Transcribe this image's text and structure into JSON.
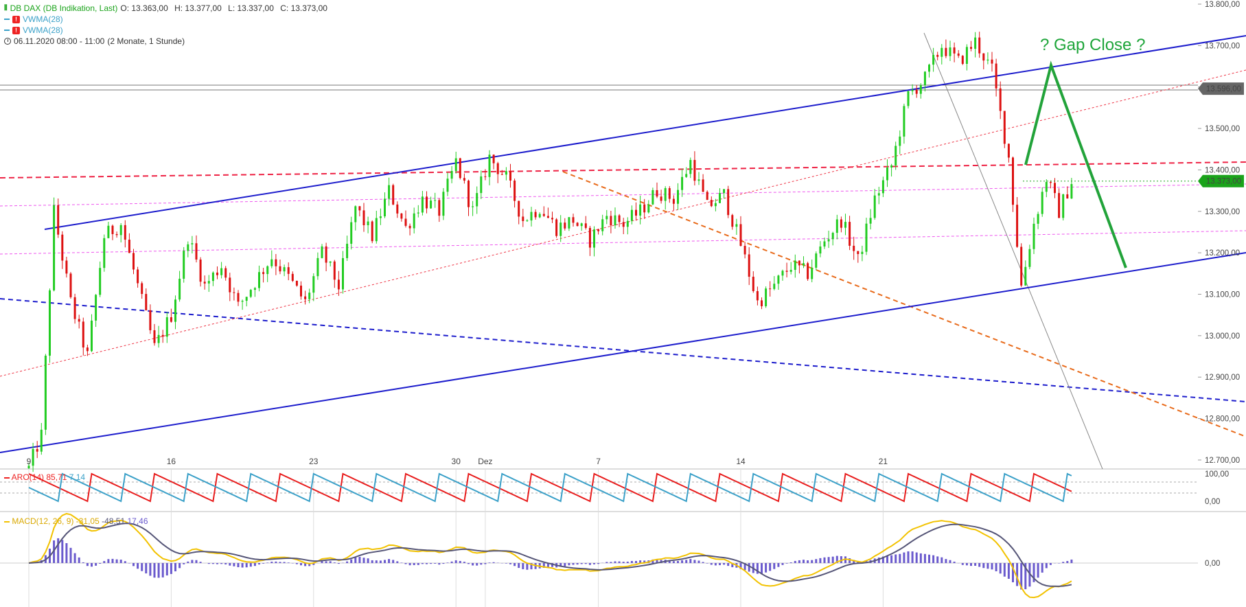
{
  "header": {
    "instrument": "DB DAX (DB Indikation, Last)",
    "open": "O: 13.363,00",
    "high": "H: 13.377,00",
    "low": "L: 13.337,00",
    "close": "C: 13.373,00",
    "indicator1": "VWMA(28)",
    "indicator2": "VWMA(28)",
    "range": "06.11.2020 08:00 - 11:00",
    "period": "(2 Monate, 1 Stunde)"
  },
  "colors": {
    "up": "#22cc22",
    "down": "#dd1111",
    "channel": "#1c1ccc",
    "arrow": "#22a33a",
    "orange": "#e86a1a",
    "pink": "#ee55ee",
    "red_dashed": "#ee2244",
    "aroon_up": "#e81c1c",
    "aroon_down": "#3aa0c8",
    "macd_line": "#f2c200",
    "signal_line": "#555577",
    "histogram": "#6a5acd"
  },
  "chart_data": [
    {
      "type": "candlestick",
      "title": "DB DAX (DB Indikation, Last)",
      "ylim": [
        12680,
        13800
      ],
      "y_ticks": [
        "12.700,00",
        "12.800,00",
        "12.900,00",
        "13.000,00",
        "13.100,00",
        "13.200,00",
        "13.300,00",
        "13.400,00",
        "13.500,00",
        "13.600,00",
        "13.700,00",
        "13.800,00"
      ],
      "x_tick_labels": [
        "9",
        "16",
        "23",
        "30",
        "Dez",
        "7",
        "14",
        "21"
      ],
      "price_labels": {
        "reference": "13.596,00",
        "last": "13.373,00"
      },
      "annotation": "? Gap Close ?",
      "path": [
        [
          0,
          12680
        ],
        [
          3,
          12760
        ],
        [
          6,
          13300
        ],
        [
          10,
          13080
        ],
        [
          14,
          12950
        ],
        [
          18,
          13240
        ],
        [
          22,
          13270
        ],
        [
          26,
          13120
        ],
        [
          30,
          12970
        ],
        [
          34,
          13050
        ],
        [
          38,
          13240
        ],
        [
          42,
          13120
        ],
        [
          46,
          13170
        ],
        [
          50,
          13070
        ],
        [
          54,
          13130
        ],
        [
          58,
          13190
        ],
        [
          62,
          13140
        ],
        [
          66,
          13080
        ],
        [
          70,
          13200
        ],
        [
          74,
          13120
        ],
        [
          78,
          13310
        ],
        [
          82,
          13240
        ],
        [
          86,
          13350
        ],
        [
          90,
          13260
        ],
        [
          94,
          13330
        ],
        [
          98,
          13300
        ],
        [
          102,
          13420
        ],
        [
          106,
          13300
        ],
        [
          110,
          13430
        ],
        [
          114,
          13380
        ],
        [
          118,
          13280
        ],
        [
          122,
          13310
        ],
        [
          126,
          13260
        ],
        [
          130,
          13280
        ],
        [
          134,
          13230
        ],
        [
          138,
          13290
        ],
        [
          142,
          13270
        ],
        [
          146,
          13300
        ],
        [
          150,
          13350
        ],
        [
          154,
          13330
        ],
        [
          158,
          13420
        ],
        [
          162,
          13310
        ],
        [
          166,
          13340
        ],
        [
          170,
          13220
        ],
        [
          174,
          13080
        ],
        [
          178,
          13120
        ],
        [
          182,
          13170
        ],
        [
          186,
          13150
        ],
        [
          190,
          13230
        ],
        [
          194,
          13280
        ],
        [
          198,
          13180
        ],
        [
          202,
          13330
        ],
        [
          206,
          13410
        ],
        [
          210,
          13580
        ],
        [
          214,
          13620
        ],
        [
          218,
          13700
        ],
        [
          222,
          13660
        ],
        [
          226,
          13710
        ],
        [
          230,
          13640
        ],
        [
          234,
          13430
        ],
        [
          237,
          13120
        ],
        [
          240,
          13270
        ],
        [
          243,
          13380
        ],
        [
          246,
          13300
        ],
        [
          249,
          13373
        ]
      ]
    },
    {
      "type": "line",
      "title": "ARO(14)",
      "ylim": [
        0,
        100
      ],
      "y_ticks": [
        "0,00",
        "100,00"
      ],
      "series": [
        {
          "name": "Aroon Up",
          "last": "85,71"
        },
        {
          "name": "Aroon Down",
          "last": "7,14"
        }
      ]
    },
    {
      "type": "line",
      "title": "MACD(12, 26, 9)",
      "y_ticks": [
        "0,00"
      ],
      "series": [
        {
          "name": "MACD",
          "last": "-31,05"
        },
        {
          "name": "Signal",
          "last": "-48,51"
        },
        {
          "name": "Histogram",
          "last": "17,46"
        }
      ]
    }
  ]
}
